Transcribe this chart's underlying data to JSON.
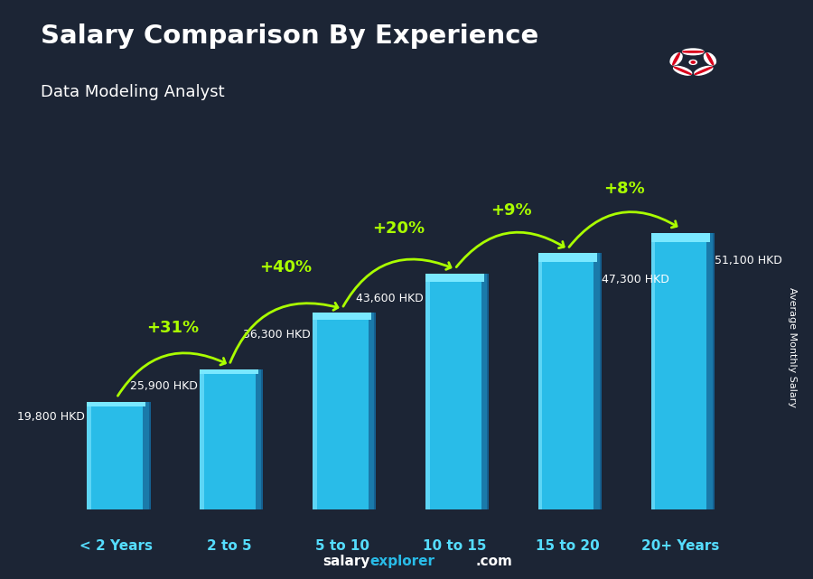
{
  "title": "Salary Comparison By Experience",
  "subtitle": "Data Modeling Analyst",
  "categories": [
    "< 2 Years",
    "2 to 5",
    "5 to 10",
    "10 to 15",
    "15 to 20",
    "20+ Years"
  ],
  "values": [
    19800,
    25900,
    36300,
    43600,
    47300,
    51100
  ],
  "value_labels": [
    "19,800 HKD",
    "25,900 HKD",
    "36,300 HKD",
    "43,600 HKD",
    "47,300 HKD",
    "51,100 HKD"
  ],
  "pct_changes": [
    "+31%",
    "+40%",
    "+20%",
    "+9%",
    "+8%"
  ],
  "bar_color": "#29bce8",
  "bar_left_highlight": "#5dd5f5",
  "bar_right_shadow": "#1a7aaa",
  "bar_top_highlight": "#7ae8ff",
  "bg_color": "#1c2535",
  "title_color": "#ffffff",
  "subtitle_color": "#ffffff",
  "value_label_color": "#ffffff",
  "pct_color": "#aaff00",
  "xlabel_color": "#55ddff",
  "xlabel_to_color": "#ffffff",
  "ylabel_text": "Average Monthly Salary",
  "footer_salary": "salary",
  "footer_explorer": "explorer",
  "footer_com": ".com",
  "footer_salary_color": "#ffffff",
  "footer_explorer_color": "#29bce8",
  "footer_com_color": "#ffffff",
  "ylim_max": 62000,
  "bar_width": 0.52
}
